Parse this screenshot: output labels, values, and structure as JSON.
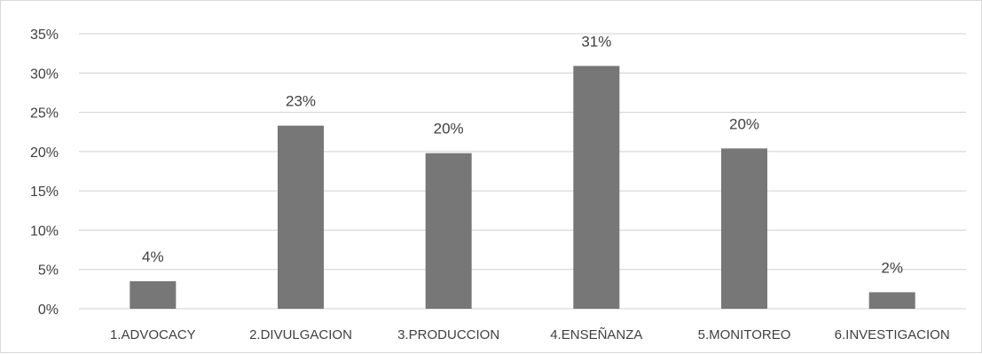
{
  "chart_data": {
    "type": "bar",
    "categories": [
      "1.ADVOCACY",
      "2.DIVULGACION",
      "3.PRODUCCION",
      "4.ENSEÑANZA",
      "5.MONITOREO",
      "6.INVESTIGACION"
    ],
    "values": [
      3.5,
      23.3,
      19.8,
      30.9,
      20.4,
      2.1
    ],
    "data_labels": [
      "4%",
      "23%",
      "20%",
      "31%",
      "20%",
      "2%"
    ],
    "yticks": [
      0,
      5,
      10,
      15,
      20,
      25,
      30,
      35
    ],
    "ytick_labels": [
      "0%",
      "5%",
      "10%",
      "15%",
      "20%",
      "25%",
      "30%",
      "35%"
    ],
    "ylim": [
      0,
      35
    ],
    "grid": true,
    "legend": false,
    "bar_color": "#777777",
    "grid_color": "#d0d0d0"
  }
}
